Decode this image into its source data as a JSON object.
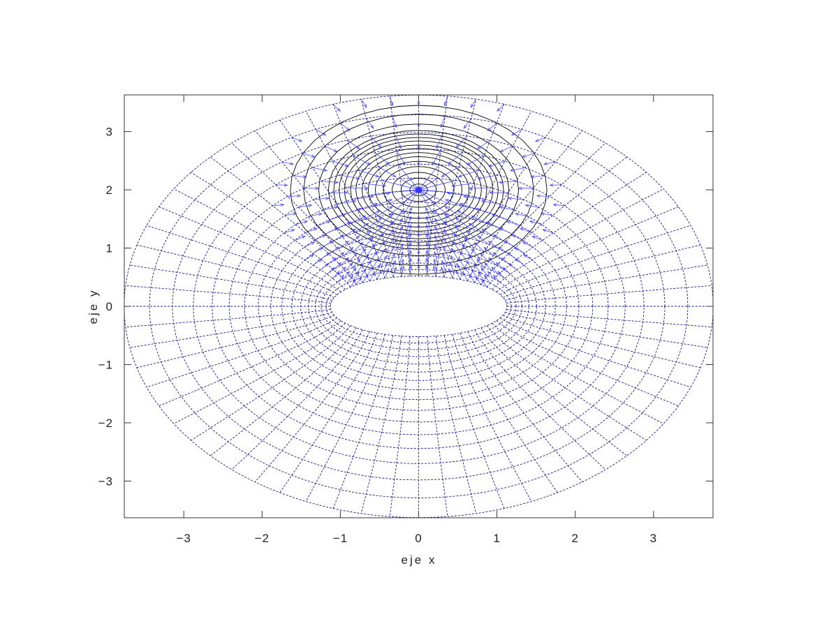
{
  "chart_data": {
    "type": "quiver-contour",
    "title": "",
    "xlabel": "eje x",
    "ylabel": "eje y",
    "xlim": [
      -3.76,
      3.76
    ],
    "ylim": [
      -3.63,
      3.63
    ],
    "xticks": [
      -3,
      -2,
      -1,
      0,
      1,
      2,
      3
    ],
    "yticks": [
      -3,
      -2,
      -1,
      0,
      1,
      2,
      3
    ],
    "xtick_labels": [
      "−3",
      "−2",
      "−1",
      "0",
      "1",
      "2",
      "3"
    ],
    "ytick_labels": [
      "−3",
      "−2",
      "−1",
      "0",
      "1",
      "2",
      "3"
    ],
    "grid": {
      "kind": "elliptic coordinates",
      "focal_distance": 1,
      "mu_range": [
        0.5,
        2.0
      ],
      "mu_count": 17,
      "nu_count": 64,
      "color": "#1a1a8c"
    },
    "source_point": [
      0,
      2
    ],
    "contour_color": "#000000",
    "contour_radii": [
      0.1,
      0.2,
      0.3,
      0.4,
      0.49,
      0.57,
      0.64,
      0.71,
      0.77,
      0.84,
      0.9,
      0.96,
      1.02,
      1.13,
      1.3,
      1.45
    ],
    "arrow_color": "#3333ff",
    "legend": "none"
  }
}
